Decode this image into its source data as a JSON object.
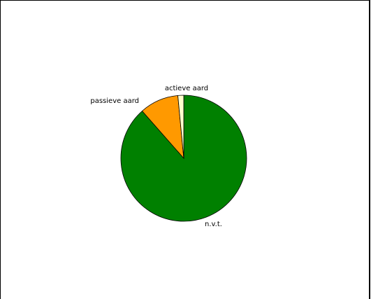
{
  "chart_data": {
    "type": "pie",
    "title": "",
    "slices": [
      {
        "label": "n.v.t.",
        "value": 88.5,
        "color": "#008000"
      },
      {
        "label": "passieve aard",
        "value": 10.0,
        "color": "#ff9900"
      },
      {
        "label": "actieve aard",
        "value": 1.5,
        "color": "#ffffcc"
      }
    ],
    "start": "12 o'clock",
    "direction": "clockwise",
    "legend": "none",
    "slice_outline_color": "#000000"
  }
}
